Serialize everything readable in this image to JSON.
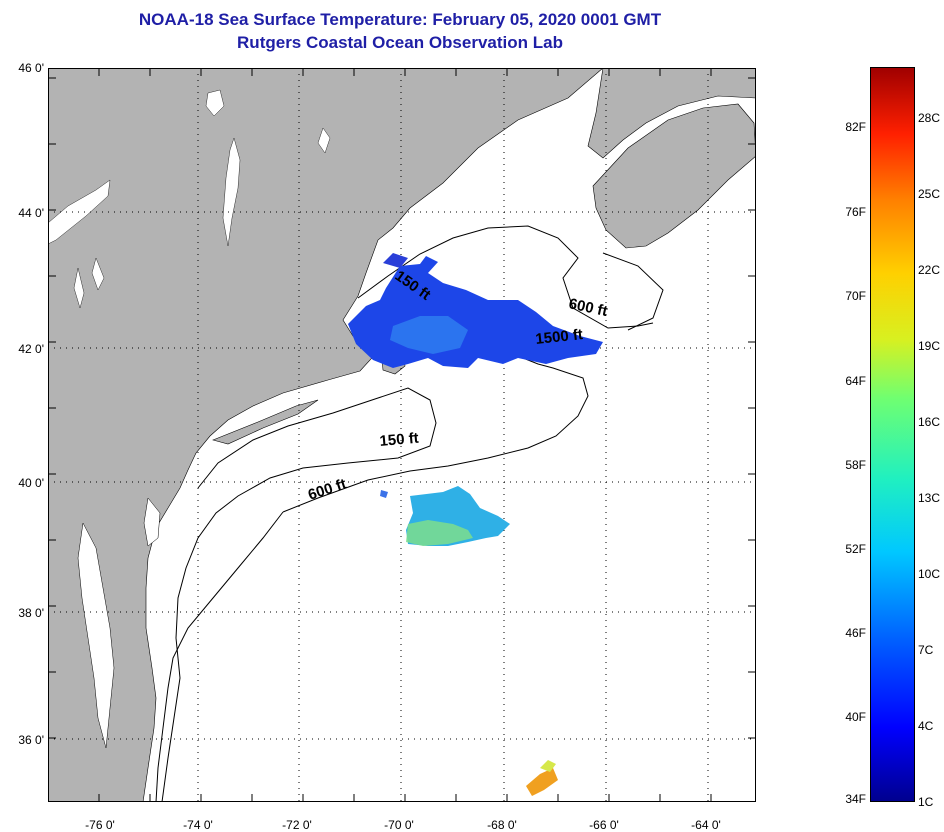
{
  "title": {
    "line1": "NOAA-18 Sea Surface Temperature:  February 05, 2020 0001 GMT",
    "line2": "Rutgers Coastal Ocean Observation Lab"
  },
  "latitude_labels": [
    "46 0'",
    "44 0'",
    "42 0'",
    "40 0'",
    "38 0'",
    "36 0'"
  ],
  "longitude_labels": [
    "-76 0'",
    "-74 0'",
    "-72 0'",
    "-70 0'",
    "-68 0'",
    "-66 0'",
    "-64 0'"
  ],
  "contour_labels": {
    "c150_north": "150 ft",
    "c600_east": "600 ft",
    "c1500": "1500 ft",
    "c150_south": "150 ft",
    "c600_south": "600 ft"
  },
  "colorbar": {
    "fahrenheit": [
      "34F",
      "40F",
      "46F",
      "52F",
      "58F",
      "64F",
      "70F",
      "76F",
      "82F"
    ],
    "celsius": [
      "1C",
      "4C",
      "7C",
      "10C",
      "13C",
      "16C",
      "19C",
      "22C",
      "25C",
      "28C"
    ]
  },
  "colors": {
    "land": "#b3b3b3",
    "title": "#1f1fa6",
    "sst_cold": "#1a3de0",
    "sst_mid": "#2fa8e6"
  }
}
